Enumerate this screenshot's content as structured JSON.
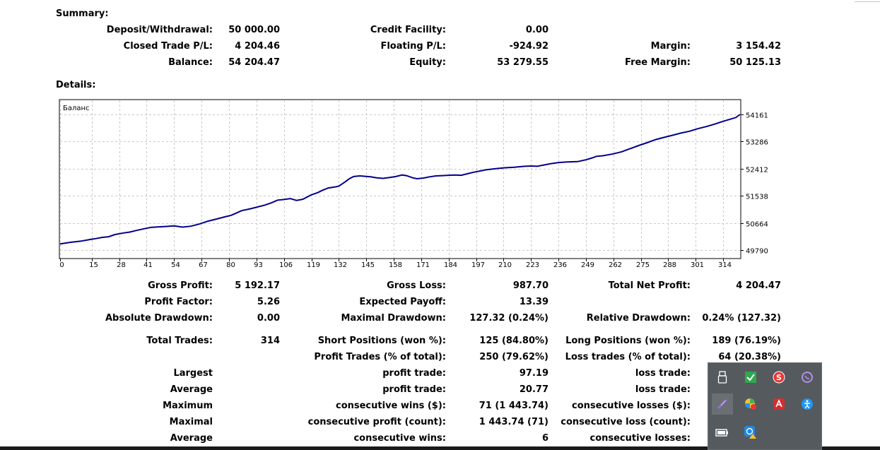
{
  "summary": {
    "header": "Summary:",
    "deposit_label": "Deposit/Withdrawal:",
    "deposit_value": "50 000.00",
    "credit_label": "Credit Facility:",
    "credit_value": "0.00",
    "closed_pl_label": "Closed Trade P/L:",
    "closed_pl_value": "4 204.46",
    "floating_pl_label": "Floating P/L:",
    "floating_pl_value": "-924.92",
    "margin_label": "Margin:",
    "margin_value": "3 154.42",
    "balance_label": "Balance:",
    "balance_value": "54 204.47",
    "equity_label": "Equity:",
    "equity_value": "53 279.55",
    "free_margin_label": "Free Margin:",
    "free_margin_value": "50 125.13"
  },
  "details": {
    "header": "Details:",
    "gross_profit_label": "Gross Profit:",
    "gross_profit_value": "5 192.17",
    "gross_loss_label": "Gross Loss:",
    "gross_loss_value": "987.70",
    "total_net_profit_label": "Total Net Profit:",
    "total_net_profit_value": "4 204.47",
    "profit_factor_label": "Profit Factor:",
    "profit_factor_value": "5.26",
    "expected_payoff_label": "Expected Payoff:",
    "expected_payoff_value": "13.39",
    "absolute_drawdown_label": "Absolute Drawdown:",
    "absolute_drawdown_value": "0.00",
    "maximal_drawdown_label": "Maximal Drawdown:",
    "maximal_drawdown_value": "127.32 (0.24%)",
    "relative_drawdown_label": "Relative Drawdown:",
    "relative_drawdown_value": "0.24% (127.32)",
    "total_trades_label": "Total Trades:",
    "total_trades_value": "314",
    "short_positions_label": "Short Positions (won %):",
    "short_positions_value": "125 (84.80%)",
    "long_positions_label": "Long Positions (won %):",
    "long_positions_value": "189 (76.19%)",
    "profit_trades_label": "Profit Trades (% of total):",
    "profit_trades_value": "250 (79.62%)",
    "loss_trades_label": "Loss trades (% of total):",
    "loss_trades_value": "64 (20.38%)",
    "largest_label": "Largest",
    "largest_profit_label": "profit trade:",
    "largest_profit_value": "97.19",
    "largest_loss_label": "loss trade:",
    "average_label": "Average",
    "average_profit_label": "profit trade:",
    "average_profit_value": "20.77",
    "average_loss_label": "loss trade:",
    "maximum_label": "Maximum",
    "max_cons_wins_label": "consecutive wins ($):",
    "max_cons_wins_value": "71 (1 443.74)",
    "max_cons_losses_label": "consecutive losses ($):",
    "maximal_label": "Maximal",
    "maximal_cons_profit_label": "consecutive profit (count):",
    "maximal_cons_profit_value": "1 443.74 (71)",
    "maximal_cons_loss_label": "consecutive loss (count):",
    "average2_label": "Average",
    "avg_cons_wins_label": "consecutive wins:",
    "avg_cons_wins_value": "6",
    "avg_cons_losses_label": "consecutive losses:"
  },
  "chart_data": {
    "type": "line",
    "title": "Баланс",
    "xlabel": "",
    "ylabel": "",
    "xlim": [
      0,
      322
    ],
    "ylim": [
      49790,
      54161
    ],
    "x_ticks": [
      0,
      15,
      28,
      41,
      54,
      67,
      80,
      93,
      106,
      119,
      132,
      145,
      158,
      171,
      184,
      197,
      210,
      223,
      236,
      249,
      262,
      275,
      288,
      301,
      314
    ],
    "y_ticks": [
      49790,
      50664,
      51538,
      52412,
      53286,
      54161
    ],
    "line_color": "#00008b",
    "grid": true,
    "series": [
      {
        "x": [
          0,
          5,
          10,
          14,
          17,
          20,
          23,
          26,
          30,
          33,
          36,
          40,
          43,
          47,
          50,
          54,
          58,
          62,
          66,
          70,
          74,
          78,
          81,
          83,
          86,
          90,
          93,
          97,
          100,
          103,
          106,
          109,
          112,
          115,
          119,
          122,
          124,
          127,
          130,
          132,
          135,
          137,
          139,
          142,
          144,
          147,
          150,
          153,
          156,
          159,
          162,
          164,
          167,
          169,
          172,
          175,
          178,
          181,
          184,
          187,
          190,
          193,
          196,
          199,
          202,
          206,
          210,
          215,
          220,
          223,
          226,
          229,
          232,
          236,
          240,
          245,
          249,
          252,
          254,
          257,
          262,
          266,
          270,
          274,
          278,
          282,
          286,
          290,
          294,
          298,
          302,
          306,
          310,
          314,
          317,
          320,
          322
        ],
        "y": [
          49990,
          50040,
          50080,
          50130,
          50160,
          50200,
          50220,
          50290,
          50340,
          50370,
          50420,
          50480,
          50520,
          50540,
          50550,
          50570,
          50530,
          50560,
          50630,
          50720,
          50790,
          50860,
          50910,
          50970,
          51060,
          51120,
          51170,
          51240,
          51310,
          51400,
          51420,
          51450,
          51390,
          51430,
          51570,
          51640,
          51710,
          51790,
          51820,
          51850,
          51990,
          52090,
          52160,
          52180,
          52170,
          52150,
          52120,
          52100,
          52130,
          52160,
          52210,
          52190,
          52120,
          52090,
          52110,
          52150,
          52180,
          52190,
          52200,
          52210,
          52200,
          52250,
          52300,
          52340,
          52380,
          52410,
          52440,
          52460,
          52490,
          52500,
          52490,
          52530,
          52570,
          52610,
          52630,
          52640,
          52700,
          52760,
          52810,
          52830,
          52890,
          52960,
          53060,
          53160,
          53250,
          53350,
          53420,
          53490,
          53560,
          53620,
          53700,
          53770,
          53850,
          53940,
          54000,
          54060,
          54161
        ]
      }
    ]
  },
  "tray": {
    "icons": [
      "usb-icon",
      "checkmark-icon",
      "antivirus-s-icon",
      "viber-icon",
      "feather-icon",
      "color-wheel-icon",
      "acrobat-icon",
      "accessibility-icon",
      "battery-icon",
      "network-warning-icon"
    ]
  }
}
